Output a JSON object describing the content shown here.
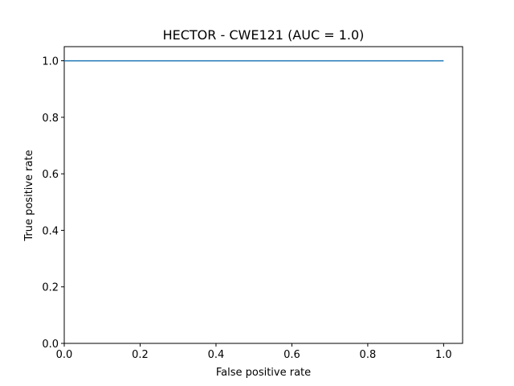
{
  "chart_data": {
    "type": "line",
    "title": "HECTOR - CWE121 (AUC = 1.0)",
    "xlabel": "False positive rate",
    "ylabel": "True positive rate",
    "xlim": [
      0.0,
      1.05
    ],
    "ylim": [
      0.0,
      1.05
    ],
    "xticks": [
      0.0,
      0.2,
      0.4,
      0.6,
      0.8,
      1.0
    ],
    "xtick_labels": [
      "0.0",
      "0.2",
      "0.4",
      "0.6",
      "0.8",
      "1.0"
    ],
    "yticks": [
      0.0,
      0.2,
      0.4,
      0.6,
      0.8,
      1.0
    ],
    "ytick_labels": [
      "0.0",
      "0.2",
      "0.4",
      "0.6",
      "0.8",
      "1.0"
    ],
    "grid": false,
    "series": [
      {
        "color": "#1f77b4",
        "x": [
          0.0,
          1.0
        ],
        "y": [
          1.0,
          1.0
        ]
      }
    ]
  }
}
